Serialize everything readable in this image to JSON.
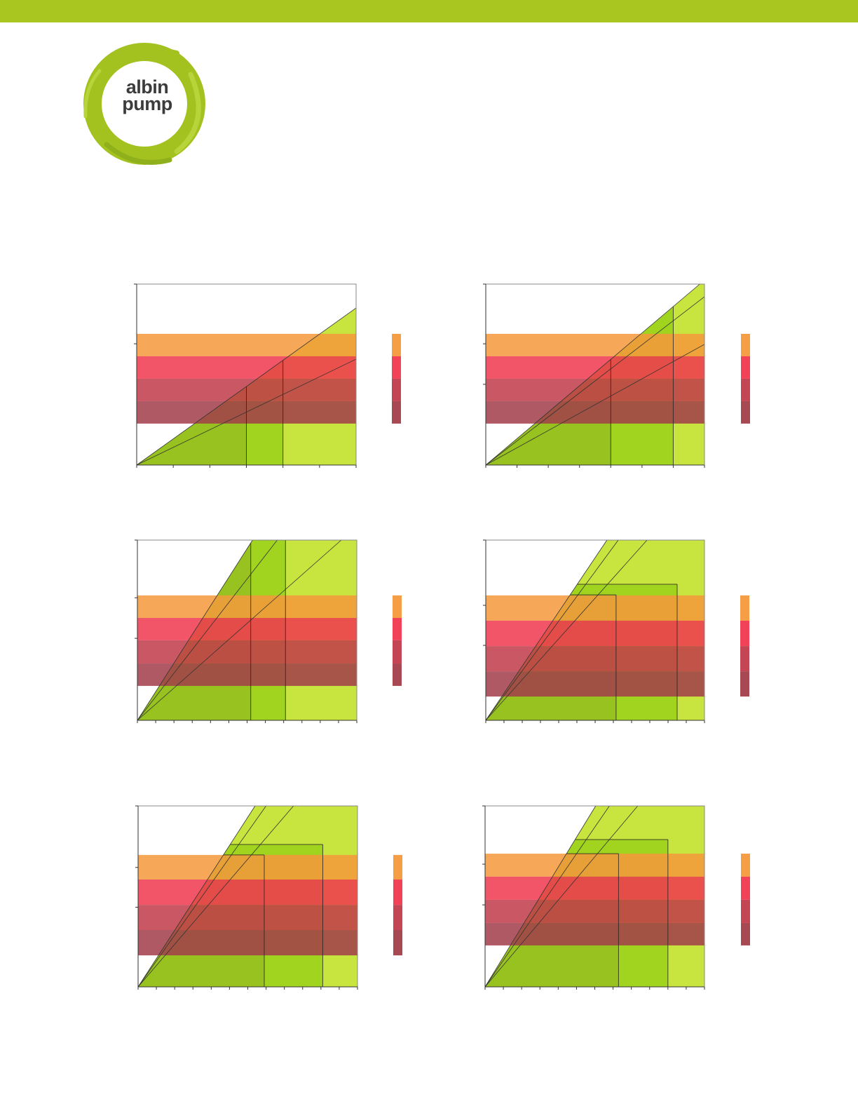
{
  "header": {
    "bar_color": "#a8c61f"
  },
  "logo": {
    "line1": "albin",
    "line2": "pump",
    "color": "#a4c21f"
  },
  "colors": {
    "bands": [
      "#f5993b",
      "#f0384f",
      "#c13b4b",
      "#a23e4a"
    ],
    "zones": [
      "#c8e43e",
      "#a0d41e",
      "#98c21f"
    ]
  },
  "chart_data": [
    {
      "type": "area",
      "xlim": [
        0,
        6
      ],
      "ylim": [
        0,
        100
      ],
      "x_ticks": 6,
      "y_ticks": [
        67
      ],
      "bands": [
        72.5,
        60.1,
        47.7,
        35.3,
        22.9
      ],
      "lines": [
        {
          "x": 6,
          "y": 86.8
        },
        {
          "x": 6,
          "y": 58.5
        }
      ],
      "zones": [
        {
          "x_max": 6,
          "cap": 100
        },
        {
          "x_max": 4,
          "cap": null
        },
        {
          "x_max": 3,
          "cap": null
        }
      ]
    },
    {
      "type": "area",
      "xlim": [
        0,
        7
      ],
      "ylim": [
        0,
        100
      ],
      "x_ticks": 7,
      "y_ticks": [
        67,
        44.6
      ],
      "bands": [
        72.5,
        60.1,
        47.7,
        35.3,
        22.9
      ],
      "lines": [
        {
          "x": 6.85,
          "y": 100
        },
        {
          "x": 7,
          "y": 93
        },
        {
          "x": 7,
          "y": 66.7
        }
      ],
      "zones": [
        {
          "x_max": 7,
          "cap": 100
        },
        {
          "x_max": 6,
          "cap": null
        },
        {
          "x_max": 4,
          "cap": null
        }
      ]
    },
    {
      "type": "area",
      "xlim": [
        0,
        12
      ],
      "ylim": [
        0,
        100
      ],
      "x_ticks": 12,
      "y_ticks": [
        68,
        45.5
      ],
      "bands": [
        69.3,
        56.8,
        44.4,
        31.5,
        19.1
      ],
      "lines": [
        {
          "x": 6.3,
          "y": 100
        },
        {
          "x": 7.65,
          "y": 100
        },
        {
          "x": 11.15,
          "y": 100
        }
      ],
      "zones": [
        {
          "x_max": 12,
          "cap": 100
        },
        {
          "x_max": 8.1,
          "cap": null
        },
        {
          "x_max": 6.2,
          "cap": null
        }
      ]
    },
    {
      "type": "area",
      "xlim": [
        0,
        12
      ],
      "ylim": [
        0,
        100
      ],
      "x_ticks": 12,
      "y_ticks": [
        63.8,
        41.6
      ],
      "bands": [
        69.3,
        55.3,
        41.2,
        27.2,
        13.2
      ],
      "lines": [
        {
          "x": 6.65,
          "y": 100
        },
        {
          "x": 7.27,
          "y": 100
        },
        {
          "x": 8.85,
          "y": 100
        }
      ],
      "zones": [
        {
          "x_max": 12,
          "cap": 100
        },
        {
          "x_max": 10.5,
          "cap": 75.5
        },
        {
          "x_max": 7.15,
          "cap": 69.6
        }
      ]
    },
    {
      "type": "area",
      "xlim": [
        0,
        12
      ],
      "ylim": [
        0,
        100
      ],
      "x_ticks": 12,
      "y_ticks": [
        66,
        44
      ],
      "bands": [
        72.9,
        59.3,
        45.3,
        31.4,
        17.4
      ],
      "lines": [
        {
          "x": 6.4,
          "y": 100
        },
        {
          "x": 7.0,
          "y": 100
        },
        {
          "x": 8.5,
          "y": 100
        }
      ],
      "zones": [
        {
          "x_max": 12,
          "cap": 100
        },
        {
          "x_max": 10.1,
          "cap": 78.7
        },
        {
          "x_max": 6.9,
          "cap": 72.9
        }
      ]
    },
    {
      "type": "area",
      "xlim": [
        0,
        12
      ],
      "ylim": [
        0,
        100
      ],
      "x_ticks": 12,
      "y_ticks": [
        67.8,
        45.3
      ],
      "bands": [
        73.6,
        60.9,
        48.1,
        35.3,
        22.9
      ],
      "lines": [
        {
          "x": 6.05,
          "y": 100
        },
        {
          "x": 6.8,
          "y": 100
        },
        {
          "x": 8.35,
          "y": 100
        }
      ],
      "zones": [
        {
          "x_max": 12,
          "cap": 100
        },
        {
          "x_max": 10.0,
          "cap": 81.4
        },
        {
          "x_max": 7.3,
          "cap": 73.6
        }
      ]
    }
  ]
}
